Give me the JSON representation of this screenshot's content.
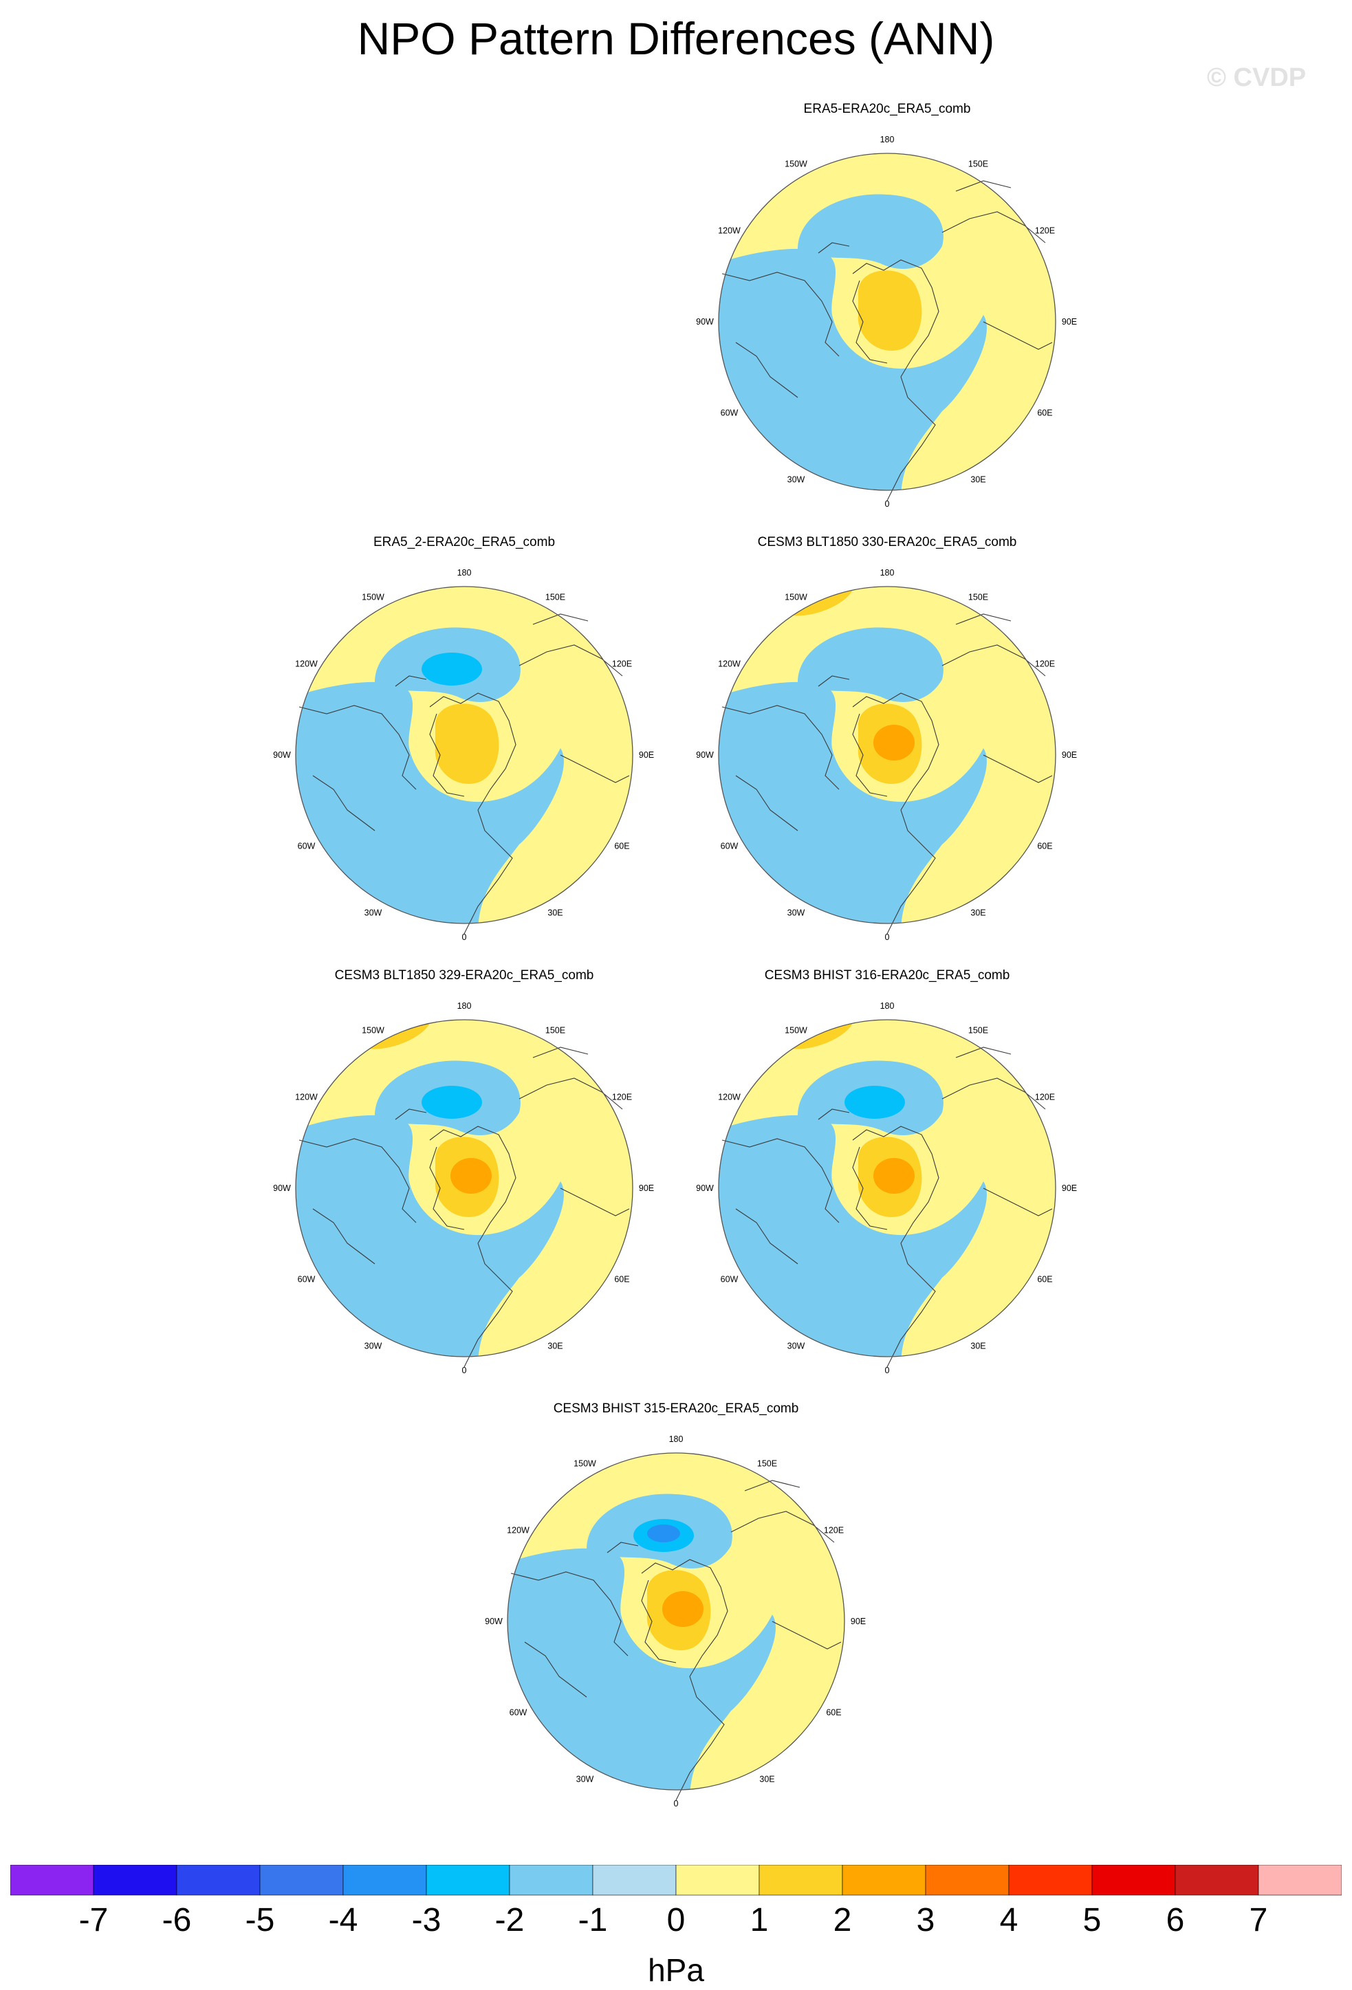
{
  "title": "NPO Pattern Differences (ANN)",
  "watermark": "© CVDP",
  "chart_data": {
    "type": "heatmap",
    "projection": "north polar stereographic",
    "units": "hPa",
    "levels": [
      -7,
      -6,
      -5,
      -4,
      -3,
      -2,
      -1,
      0,
      1,
      2,
      3,
      4,
      5,
      6,
      7
    ],
    "colors": [
      "#8b24f0",
      "#1e0ff0",
      "#2b46f0",
      "#3876ee",
      "#2492f5",
      "#04c0fa",
      "#7acbf0",
      "#b4dcf0",
      "#fff78e",
      "#fdd226",
      "#ffa600",
      "#ff7300",
      "#ff3200",
      "#eb0000",
      "#cd1e1e",
      "#ffb4b4"
    ],
    "lon_labels": [
      "180",
      "150E",
      "120E",
      "90E",
      "60E",
      "30E",
      "0",
      "30W",
      "60W",
      "90W",
      "120W",
      "150W"
    ],
    "panels": [
      {
        "title": "ERA5-ERA20c_ERA5_comb",
        "center_max": 2,
        "pacific_min": -1,
        "atlantic_sign": "negative",
        "pacific_high": false
      },
      {
        "title": "ERA5_2-ERA20c_ERA5_comb",
        "center_max": 2,
        "pacific_min": -2,
        "atlantic_sign": "negative",
        "pacific_high": false
      },
      {
        "title": "CESM3 BLT1850 330-ERA20c_ERA5_comb",
        "center_max": 3,
        "pacific_min": -1,
        "atlantic_sign": "negative",
        "pacific_high": true
      },
      {
        "title": "CESM3 BLT1850 329-ERA20c_ERA5_comb",
        "center_max": 3,
        "pacific_min": -2,
        "atlantic_sign": "negative",
        "pacific_high": true
      },
      {
        "title": "CESM3 BHIST 316-ERA20c_ERA5_comb",
        "center_max": 3,
        "pacific_min": -2,
        "atlantic_sign": "negative",
        "pacific_high": true
      },
      {
        "title": "CESM3 BHIST 315-ERA20c_ERA5_comb",
        "center_max": 3,
        "pacific_min": -3,
        "atlantic_sign": "negative",
        "pacific_high": false
      }
    ]
  }
}
